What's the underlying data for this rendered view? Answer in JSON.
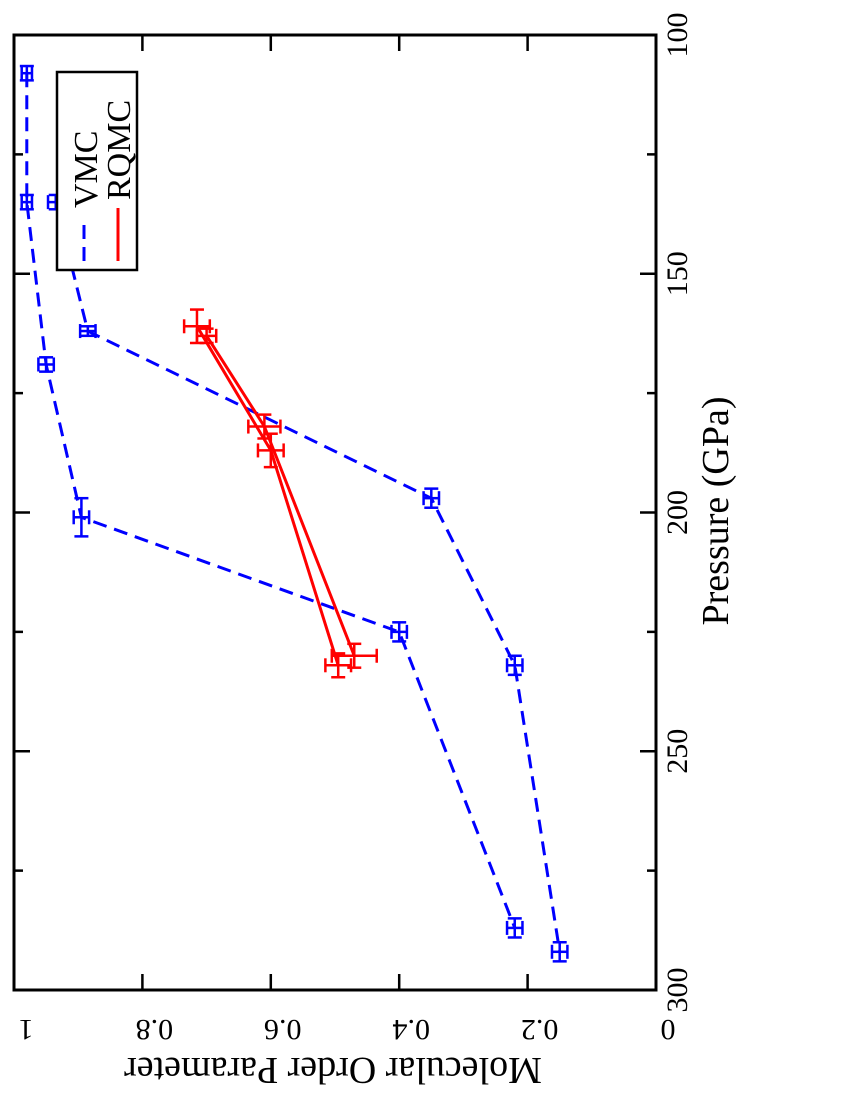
{
  "chart_data": {
    "type": "line",
    "orientation": "rotated-90-clockwise",
    "xlabel": "Pressure (GPa)",
    "ylabel": "Molecular Order Parameter",
    "xlim": [
      100,
      300
    ],
    "ylim": [
      0,
      1
    ],
    "x_major_ticks": [
      100,
      150,
      200,
      250,
      300
    ],
    "x_minor_ticks": [
      125,
      175,
      225,
      275
    ],
    "y_major_ticks": [
      0,
      0.2,
      0.4,
      0.6,
      0.8,
      1
    ],
    "y_tick_labels": [
      "0",
      "0.2",
      "0.4",
      "0.6",
      "0.8",
      "1"
    ],
    "x_tick_labels": [
      "100",
      "150",
      "200",
      "250",
      "300"
    ],
    "legend_position": "top-left",
    "grid": false,
    "series": [
      {
        "name": "VMC",
        "color": "#0000ff",
        "style": "dashed",
        "segments": [
          {
            "points": [
              {
                "x": 108,
                "y": 0.98,
                "xerr": 1.5,
                "yerr": 0.008
              },
              {
                "x": 135,
                "y": 0.98,
                "xerr": 1.5,
                "yerr": 0.008
              },
              {
                "x": 169,
                "y": 0.95,
                "xerr": 1.5,
                "yerr": 0.012
              },
              {
                "x": 201,
                "y": 0.895,
                "xerr": 4,
                "yerr": 0.012
              },
              {
                "x": 225,
                "y": 0.4,
                "xerr": 2,
                "yerr": 0.012
              },
              {
                "x": 287,
                "y": 0.22,
                "xerr": 2,
                "yerr": 0.012
              }
            ]
          },
          {
            "points": [
              {
                "x": 135,
                "y": 0.935,
                "xerr": 1.5,
                "yerr": 0.012
              },
              {
                "x": 162,
                "y": 0.885,
                "xerr": 1,
                "yerr": 0.012
              },
              {
                "x": 197,
                "y": 0.35,
                "xerr": 2,
                "yerr": 0.012
              },
              {
                "x": 232,
                "y": 0.22,
                "xerr": 2,
                "yerr": 0.012
              },
              {
                "x": 292,
                "y": 0.15,
                "xerr": 2,
                "yerr": 0.012
              }
            ]
          }
        ]
      },
      {
        "name": "RQMC",
        "color": "#ff0000",
        "style": "solid",
        "segments": [
          {
            "points": [
              {
                "x": 161,
                "y": 0.715,
                "xerr": 3.5,
                "yerr": 0.02
              },
              {
                "x": 187,
                "y": 0.6,
                "xerr": 3.5,
                "yerr": 0.02
              },
              {
                "x": 232,
                "y": 0.495,
                "xerr": 2.5,
                "yerr": 0.02
              }
            ]
          },
          {
            "points": [
              {
                "x": 163,
                "y": 0.7,
                "xerr": 1.5,
                "yerr": 0.015
              },
              {
                "x": 182,
                "y": 0.61,
                "xerr": 2.5,
                "yerr": 0.025
              },
              {
                "x": 230,
                "y": 0.47,
                "xerr": 2.5,
                "yerr": 0.035
              }
            ]
          }
        ]
      }
    ]
  }
}
